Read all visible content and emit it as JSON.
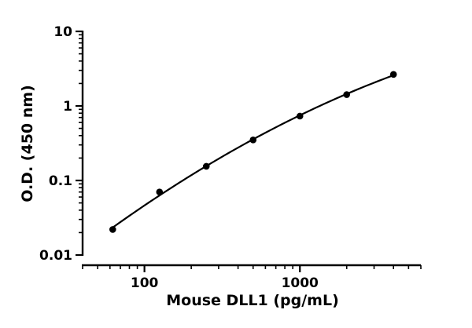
{
  "chart_data": {
    "type": "scatter",
    "title": "",
    "xlabel": "Mouse DLL1 (pg/mL)",
    "ylabel": "O.D. (450 nm)",
    "x_scale": "log",
    "y_scale": "log",
    "xlim": [
      40,
      6000
    ],
    "ylim": [
      0.01,
      10
    ],
    "x_ticks": [
      {
        "value": 100,
        "label": "100"
      },
      {
        "value": 1000,
        "label": "1000"
      }
    ],
    "y_ticks": [
      {
        "value": 0.01,
        "label": "0.01"
      },
      {
        "value": 0.1,
        "label": "0.1"
      },
      {
        "value": 1,
        "label": "1"
      },
      {
        "value": 10,
        "label": "10"
      }
    ],
    "grid": false,
    "legend": "none",
    "colors": {
      "points": "#000000",
      "curve": "#000000",
      "axes": "#000000"
    },
    "series": [
      {
        "points": [
          {
            "x": 62.5,
            "y": 0.022
          },
          {
            "x": 125,
            "y": 0.07
          },
          {
            "x": 250,
            "y": 0.155
          },
          {
            "x": 500,
            "y": 0.35
          },
          {
            "x": 1000,
            "y": 0.73
          },
          {
            "x": 2000,
            "y": 1.42
          },
          {
            "x": 4000,
            "y": 2.65
          }
        ],
        "fit_curve": true
      }
    ]
  }
}
